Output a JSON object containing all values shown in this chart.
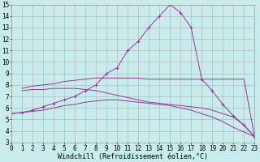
{
  "xlabel": "Windchill (Refroidissement éolien,°C)",
  "ylabel": "",
  "bg_color": "#c8ecec",
  "line_color": "#993399",
  "grid_color": "#b0b0b0",
  "xlim": [
    0,
    23
  ],
  "ylim": [
    3,
    15
  ],
  "xticks": [
    0,
    1,
    2,
    3,
    4,
    5,
    6,
    7,
    8,
    9,
    10,
    11,
    12,
    13,
    14,
    15,
    16,
    17,
    18,
    19,
    20,
    21,
    22,
    23
  ],
  "yticks": [
    3,
    4,
    5,
    6,
    7,
    8,
    9,
    10,
    11,
    12,
    13,
    14,
    15
  ],
  "lines": [
    {
      "x": [
        0,
        1,
        2,
        3,
        4,
        5,
        6,
        7,
        8,
        9,
        10,
        11,
        12,
        13,
        14,
        15,
        16,
        17,
        18,
        19,
        20,
        21,
        22,
        23
      ],
      "y": [
        5.5,
        5.6,
        5.8,
        6.1,
        6.4,
        6.7,
        7.0,
        7.5,
        8.0,
        9.0,
        9.5,
        11.0,
        11.8,
        13.0,
        14.0,
        15.0,
        14.3,
        13.0,
        8.5,
        7.5,
        6.3,
        5.3,
        4.5,
        3.5
      ],
      "marker": "+"
    },
    {
      "x": [
        1,
        2,
        3,
        4,
        5,
        6,
        7,
        8,
        9,
        10,
        11,
        12,
        13,
        14,
        15,
        16,
        17,
        18,
        19,
        20,
        21,
        22,
        23
      ],
      "y": [
        7.7,
        7.9,
        8.0,
        8.1,
        8.3,
        8.4,
        8.5,
        8.6,
        8.6,
        8.6,
        8.6,
        8.6,
        8.5,
        8.5,
        8.5,
        8.5,
        8.5,
        8.5,
        8.5,
        8.5,
        8.5,
        8.5,
        3.5
      ],
      "marker": null
    },
    {
      "x": [
        1,
        2,
        3,
        4,
        5,
        6,
        7,
        8,
        9,
        10,
        11,
        12,
        13,
        14,
        15,
        16,
        17,
        18,
        19,
        20,
        21,
        22,
        23
      ],
      "y": [
        7.5,
        7.6,
        7.6,
        7.7,
        7.7,
        7.7,
        7.6,
        7.5,
        7.3,
        7.1,
        6.9,
        6.7,
        6.5,
        6.4,
        6.3,
        6.2,
        6.1,
        6.0,
        5.8,
        5.5,
        5.2,
        4.5,
        3.5
      ],
      "marker": null
    },
    {
      "x": [
        0,
        1,
        2,
        3,
        4,
        5,
        6,
        7,
        8,
        9,
        10,
        11,
        12,
        13,
        14,
        15,
        16,
        17,
        18,
        19,
        20,
        21,
        22,
        23
      ],
      "y": [
        5.5,
        5.6,
        5.7,
        5.8,
        6.0,
        6.2,
        6.3,
        6.5,
        6.6,
        6.7,
        6.7,
        6.6,
        6.5,
        6.4,
        6.3,
        6.2,
        6.0,
        5.8,
        5.5,
        5.2,
        4.8,
        4.3,
        3.9,
        3.5
      ],
      "marker": null
    }
  ],
  "tick_fontsize": 5.5,
  "xlabel_fontsize": 6.0
}
